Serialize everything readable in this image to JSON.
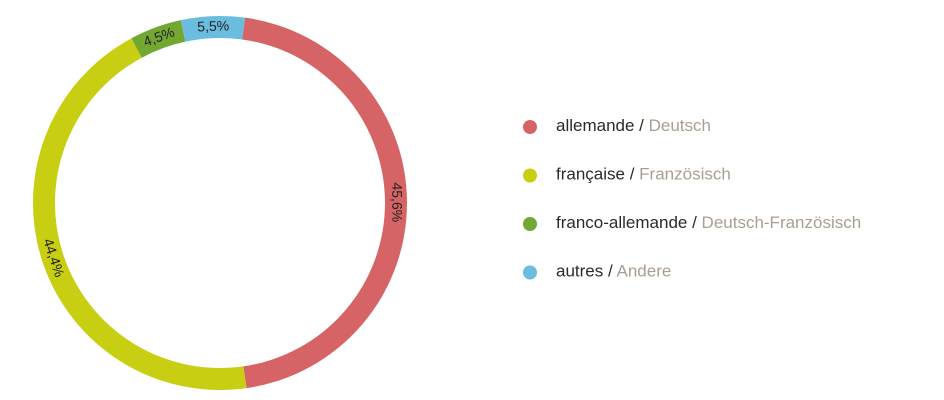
{
  "chart_data": {
    "type": "donut",
    "categories": [
      "allemande / Deutsch",
      "française / Französisch",
      "franco-allemande / Deutsch-Französisch",
      "autres / Andere"
    ],
    "values": [
      45.6,
      44.4,
      4.5,
      5.5
    ],
    "value_labels": [
      "45,6%",
      "44,4%",
      "4,5%",
      "5,5%"
    ],
    "colors": [
      "#d66466",
      "#c8cf12",
      "#72a832",
      "#6bbde0"
    ]
  }
}
